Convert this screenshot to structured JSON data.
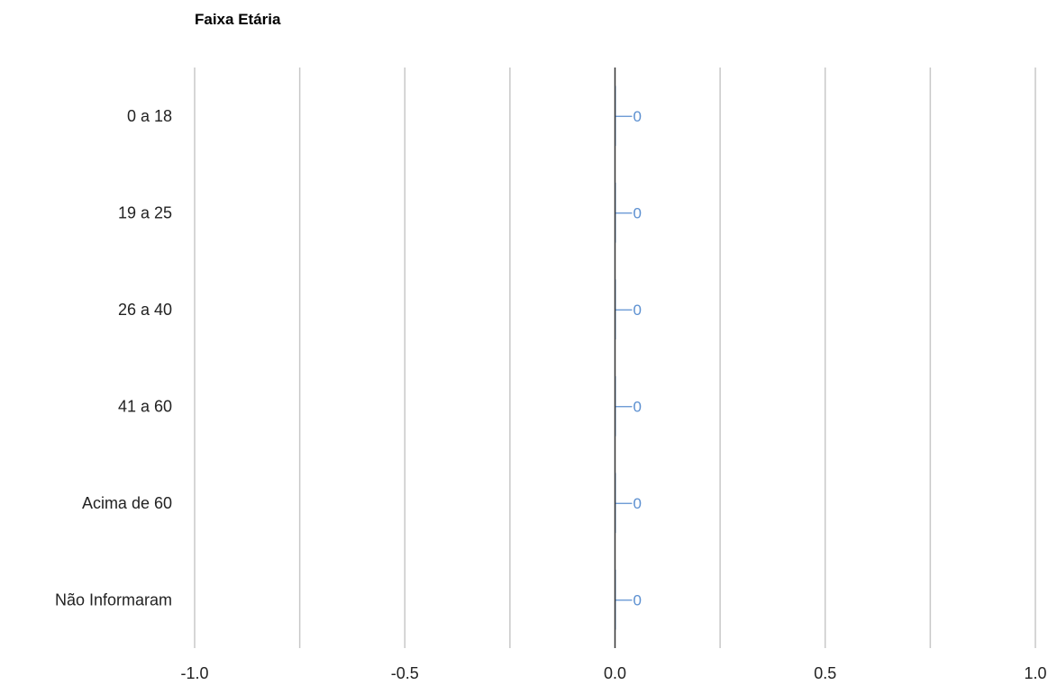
{
  "chart_data": {
    "type": "bar",
    "orientation": "horizontal",
    "title": "Faixa Etária",
    "categories": [
      "0 a 18",
      "19 a 25",
      "26 a 40",
      "41 a 60",
      "Acima de 60",
      "Não Informaram"
    ],
    "values": [
      0,
      0,
      0,
      0,
      0,
      0
    ],
    "data_labels": [
      "0",
      "0",
      "0",
      "0",
      "0",
      "0"
    ],
    "xlim": [
      -1.0,
      1.0
    ],
    "x_ticks": [
      -1.0,
      -0.5,
      0.0,
      0.5,
      1.0
    ],
    "x_tick_labels": [
      "-1.0",
      "-0.5",
      "0.0",
      "0.5",
      "1.0"
    ],
    "minor_gridlines": [
      -0.75,
      -0.25,
      0.25,
      0.75
    ],
    "xlabel": "",
    "ylabel": "",
    "grid": true,
    "legend": "none",
    "bar_color": "#5b8fd0",
    "gridline_color": "#c8c8c8",
    "baseline_color": "#333333"
  }
}
